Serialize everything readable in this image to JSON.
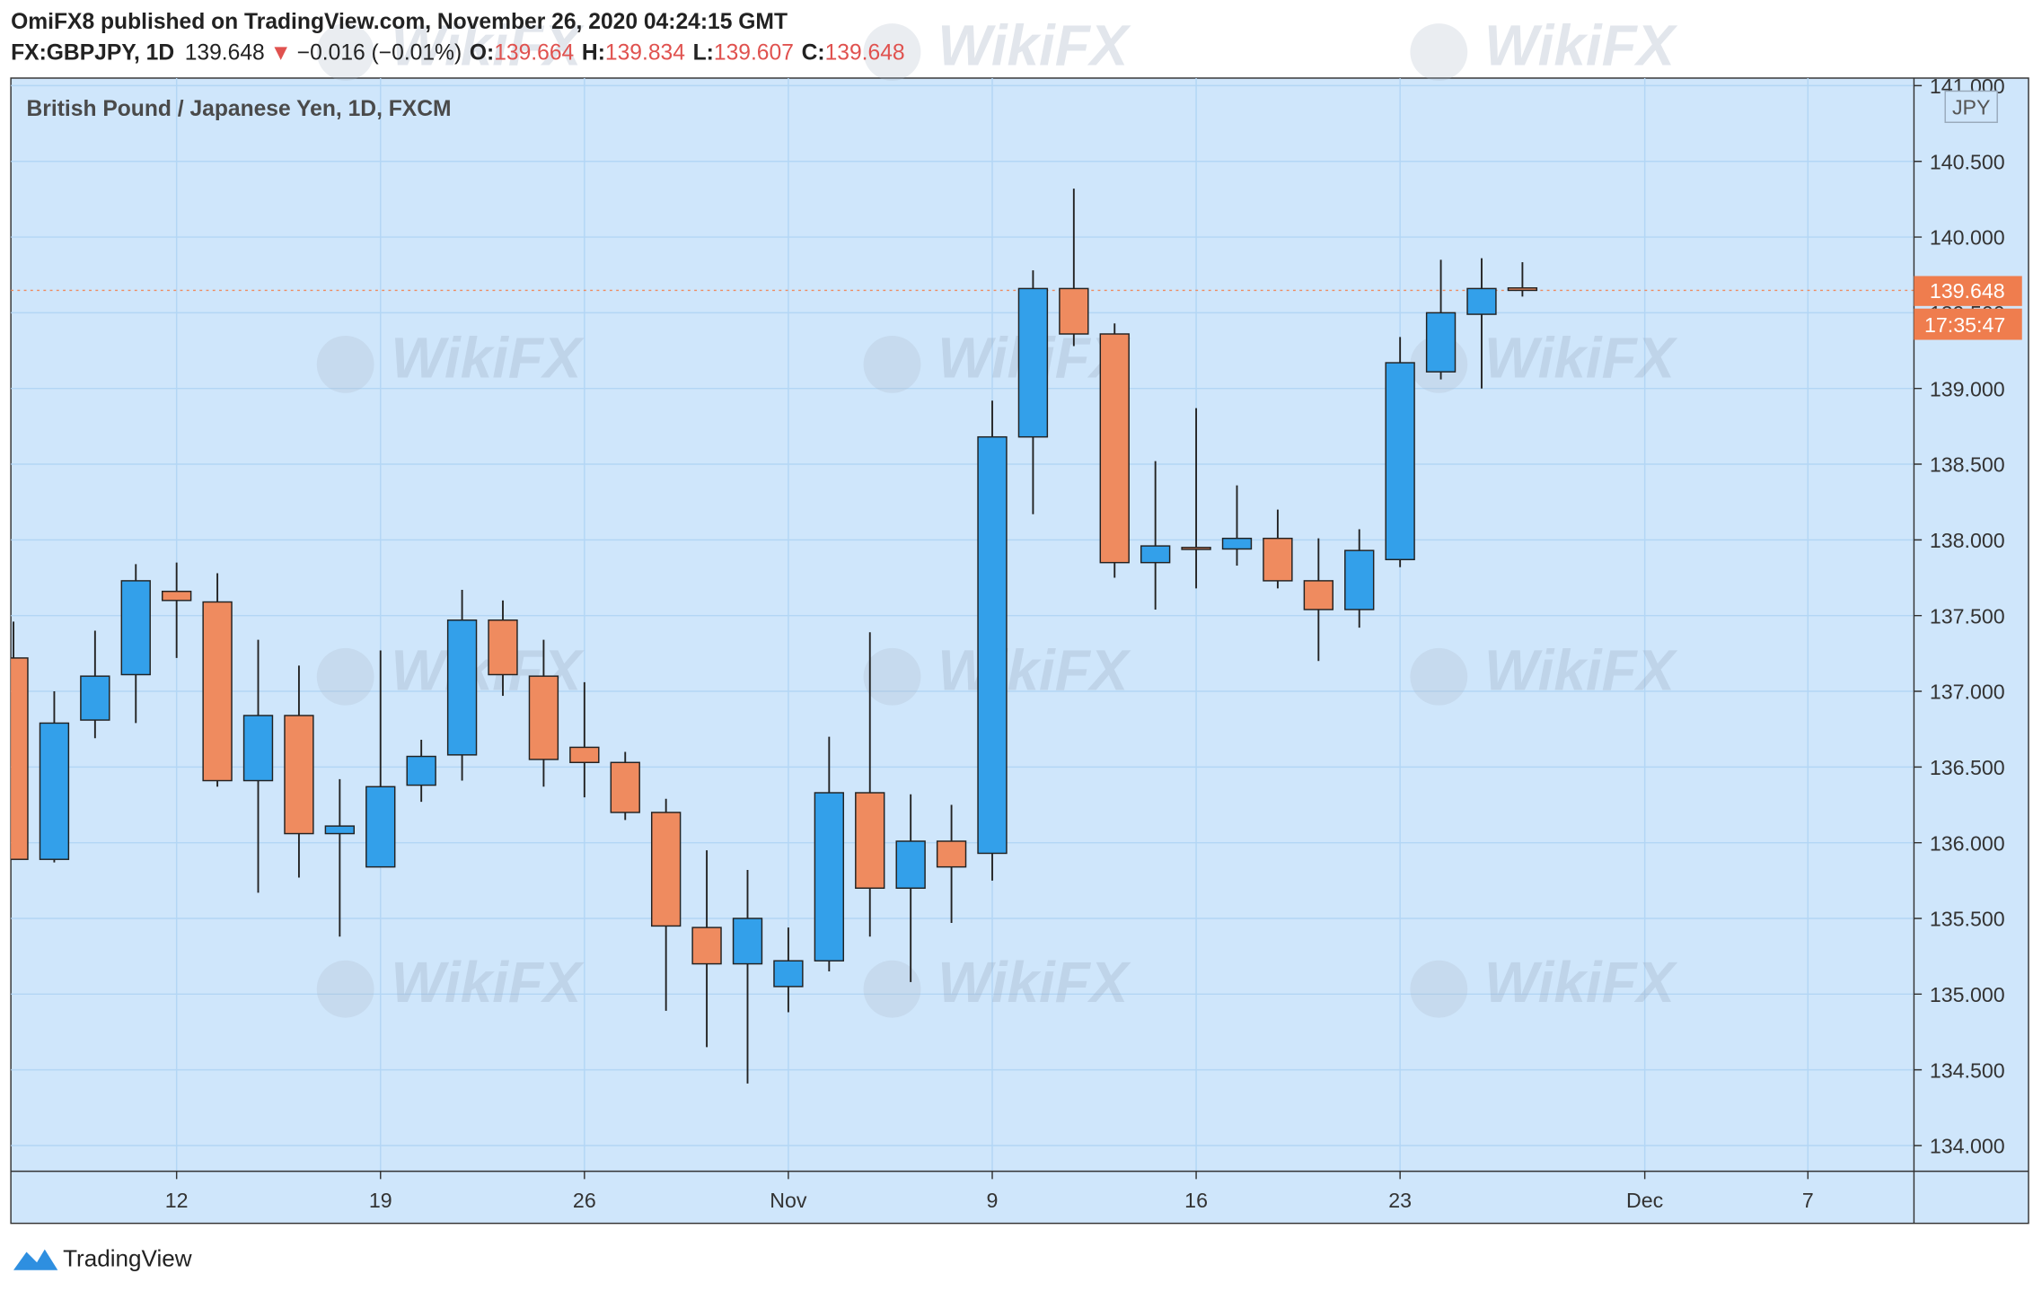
{
  "header": {
    "publisher": "OmiFX8 published on TradingView.com, November 26, 2020 04:24:15 GMT",
    "symbol": "FX:GBPJPY, 1D",
    "last": "139.648",
    "arrow": "▼",
    "change": "−0.016 (−0.01%)",
    "o_label": "O:",
    "o": "139.664",
    "h_label": "H:",
    "h": "139.834",
    "l_label": "L:",
    "l": "139.607",
    "c_label": "C:",
    "c": "139.648",
    "countdown": "17:35:47",
    "currency": "JPY",
    "watermark": "WikiFX",
    "logo": "TradingView"
  },
  "chart_data": {
    "type": "candlestick",
    "title": "British Pound / Japanese Yen, 1D, FXCM",
    "categories": [
      null,
      null,
      null,
      null,
      "12",
      null,
      null,
      null,
      null,
      "19",
      null,
      null,
      null,
      null,
      "26",
      null,
      null,
      null,
      null,
      "Nov",
      null,
      null,
      null,
      null,
      "9",
      null,
      null,
      null,
      null,
      "16",
      null,
      null,
      null,
      null,
      "23",
      null,
      null,
      null,
      null,
      null,
      "Dec",
      null,
      null,
      null,
      "7"
    ],
    "open": [
      137.22,
      135.89,
      136.81,
      137.11,
      137.66,
      137.59,
      136.41,
      136.84,
      136.06,
      135.84,
      136.38,
      136.58,
      137.47,
      137.1,
      136.63,
      136.53,
      136.2,
      135.44,
      135.2,
      135.05,
      135.22,
      136.33,
      135.7,
      136.01,
      135.93,
      138.68,
      139.66,
      139.36,
      137.85,
      137.95,
      137.94,
      138.01,
      137.73,
      137.54,
      137.87,
      139.11,
      139.49,
      139.664,
      null,
      null,
      null,
      null,
      null,
      null,
      null
    ],
    "high": [
      137.46,
      137.0,
      137.4,
      137.84,
      137.85,
      137.78,
      137.34,
      137.17,
      136.42,
      137.27,
      136.68,
      137.67,
      137.6,
      137.34,
      137.06,
      136.6,
      136.29,
      135.95,
      135.82,
      135.44,
      136.7,
      137.39,
      136.32,
      136.25,
      138.92,
      139.78,
      140.32,
      139.43,
      138.52,
      138.87,
      138.36,
      138.2,
      138.01,
      138.07,
      139.34,
      139.85,
      139.86,
      139.834,
      null,
      null,
      null,
      null,
      null,
      null,
      null
    ],
    "low": [
      135.89,
      135.87,
      136.69,
      136.79,
      137.22,
      136.37,
      135.67,
      135.77,
      135.38,
      135.84,
      136.27,
      136.41,
      136.97,
      136.37,
      136.3,
      136.15,
      134.89,
      134.65,
      134.41,
      134.88,
      135.15,
      135.38,
      135.08,
      135.47,
      135.75,
      138.17,
      139.28,
      137.75,
      137.54,
      137.68,
      137.83,
      137.68,
      137.2,
      137.42,
      137.82,
      139.06,
      139.0,
      139.607,
      null,
      null,
      null,
      null,
      null,
      null,
      null
    ],
    "close": [
      135.89,
      136.79,
      137.1,
      137.73,
      137.6,
      136.41,
      136.84,
      136.06,
      136.11,
      136.37,
      136.57,
      137.47,
      137.11,
      136.55,
      136.53,
      136.2,
      135.45,
      135.2,
      135.5,
      135.22,
      136.33,
      135.7,
      136.01,
      135.84,
      138.68,
      139.66,
      139.36,
      137.85,
      137.96,
      137.94,
      138.01,
      137.73,
      137.54,
      137.93,
      139.17,
      139.5,
      139.66,
      139.648,
      null,
      null,
      null,
      null,
      null,
      null,
      null
    ],
    "up_color": "#33a0ea",
    "down_color": "#ef8b5f",
    "ylim": [
      133.83,
      141.05
    ],
    "yticks": [
      {
        "value": 134,
        "label": "134.000"
      },
      {
        "value": 134.5,
        "label": "134.500"
      },
      {
        "value": 135,
        "label": "135.000"
      },
      {
        "value": 135.5,
        "label": "135.500"
      },
      {
        "value": 136,
        "label": "136.000"
      },
      {
        "value": 136.5,
        "label": "136.500"
      },
      {
        "value": 137,
        "label": "137.000"
      },
      {
        "value": 137.5,
        "label": "137.500"
      },
      {
        "value": 138,
        "label": "138.000"
      },
      {
        "value": 138.5,
        "label": "138.500"
      },
      {
        "value": 139,
        "label": "139.000"
      },
      {
        "value": 139.5,
        "label": "139.500"
      },
      {
        "value": 140,
        "label": "140.000"
      },
      {
        "value": 140.5,
        "label": "140.500"
      },
      {
        "value": 141,
        "label": "141.000"
      }
    ],
    "last_price": 139.648,
    "grid": true
  }
}
